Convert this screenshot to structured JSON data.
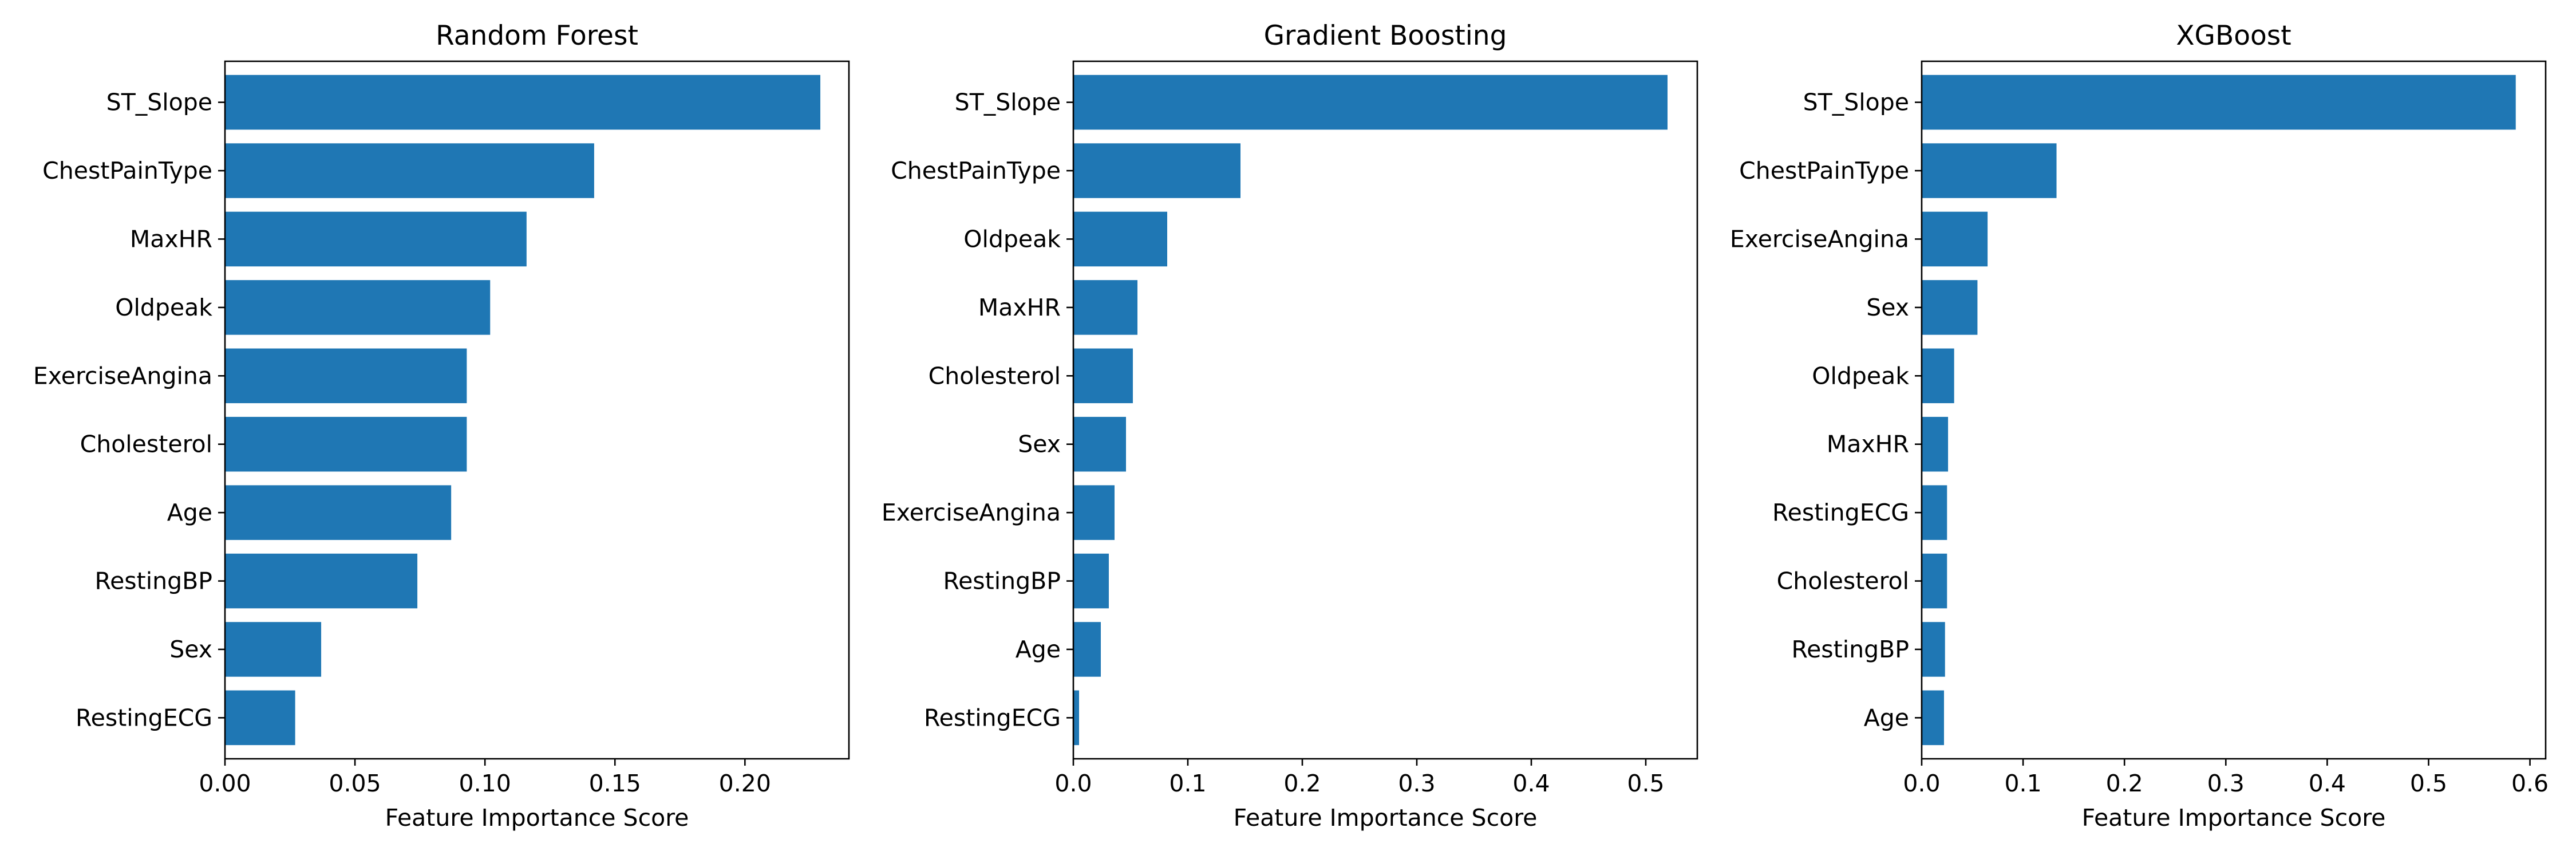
{
  "figure": {
    "bar_color": "#1f77b4",
    "background": "#ffffff"
  },
  "chart_data": [
    {
      "type": "bar",
      "orientation": "horizontal",
      "title": "Random Forest",
      "xlabel": "Feature Importance Score",
      "ylabel": "",
      "categories": [
        "ST_Slope",
        "ChestPainType",
        "MaxHR",
        "Oldpeak",
        "ExerciseAngina",
        "Cholesterol",
        "Age",
        "RestingBP",
        "Sex",
        "RestingECG"
      ],
      "values": [
        0.229,
        0.142,
        0.116,
        0.102,
        0.093,
        0.093,
        0.087,
        0.074,
        0.037,
        0.027
      ],
      "xlim": [
        0,
        0.24
      ],
      "xticks": [
        0,
        0.05,
        0.1,
        0.15,
        0.2
      ],
      "xtick_labels": [
        "0.00",
        "0.05",
        "0.10",
        "0.15",
        "0.20"
      ],
      "grid": false
    },
    {
      "type": "bar",
      "orientation": "horizontal",
      "title": "Gradient Boosting",
      "xlabel": "Feature Importance Score",
      "ylabel": "",
      "categories": [
        "ST_Slope",
        "ChestPainType",
        "Oldpeak",
        "MaxHR",
        "Cholesterol",
        "Sex",
        "ExerciseAngina",
        "RestingBP",
        "Age",
        "RestingECG"
      ],
      "values": [
        0.519,
        0.146,
        0.082,
        0.056,
        0.052,
        0.046,
        0.036,
        0.031,
        0.024,
        0.005
      ],
      "xlim": [
        0,
        0.545
      ],
      "xticks": [
        0,
        0.1,
        0.2,
        0.3,
        0.4,
        0.5
      ],
      "xtick_labels": [
        "0.0",
        "0.1",
        "0.2",
        "0.3",
        "0.4",
        "0.5"
      ],
      "grid": false
    },
    {
      "type": "bar",
      "orientation": "horizontal",
      "title": "XGBoost",
      "xlabel": "Feature Importance Score",
      "ylabel": "",
      "categories": [
        "ST_Slope",
        "ChestPainType",
        "ExerciseAngina",
        "Sex",
        "Oldpeak",
        "MaxHR",
        "RestingECG",
        "Cholesterol",
        "RestingBP",
        "Age"
      ],
      "values": [
        0.586,
        0.133,
        0.065,
        0.055,
        0.032,
        0.026,
        0.025,
        0.025,
        0.023,
        0.022
      ],
      "xlim": [
        0,
        0.6155
      ],
      "xticks": [
        0,
        0.1,
        0.2,
        0.3,
        0.4,
        0.5,
        0.6
      ],
      "xtick_labels": [
        "0.0",
        "0.1",
        "0.2",
        "0.3",
        "0.4",
        "0.5",
        "0.6"
      ],
      "grid": false
    }
  ]
}
